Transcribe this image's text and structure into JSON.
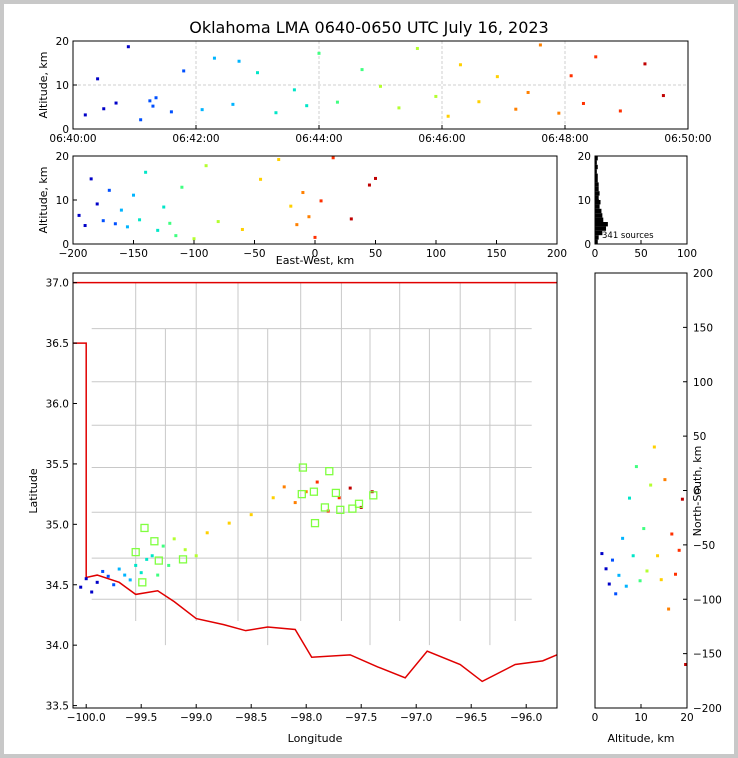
{
  "title": "Oklahoma LMA 0640-0650 UTC July 16, 2023",
  "colors": {
    "state_border": "#e00000",
    "county_lines": "#c8c8c8",
    "station_marker": "#80ff40",
    "density_bars": "#000000",
    "point_colormap": [
      "#0000c8",
      "#0050ff",
      "#00b4ff",
      "#00e6c8",
      "#40ff80",
      "#b4ff30",
      "#ffd000",
      "#ff8000",
      "#ff3000",
      "#c00000"
    ]
  },
  "chart_data": [
    {
      "id": "time_height",
      "type": "scatter",
      "ylabel": "Altitude, km",
      "xlim": [
        "06:40:00",
        "06:50:00"
      ],
      "ylim": [
        0,
        20
      ],
      "xticks": [
        "06:40:00",
        "06:42:00",
        "06:44:00",
        "06:46:00",
        "06:48:00",
        "06:50:00"
      ],
      "yticks": [
        "0",
        "10",
        "20"
      ],
      "grid": true,
      "points_t_min": [
        0.2,
        0.4,
        0.5,
        0.7,
        0.9,
        1.1,
        1.25,
        1.3,
        1.35,
        1.6,
        1.8,
        2.1,
        2.3,
        2.6,
        2.7,
        3.0,
        3.3,
        3.6,
        3.8,
        4.0,
        4.3,
        4.7,
        5.0,
        5.3,
        5.6,
        5.9,
        6.1,
        6.3,
        6.6,
        6.9,
        7.2,
        7.4,
        7.6,
        7.9,
        8.1,
        8.3,
        8.5,
        8.9,
        9.3,
        9.6
      ],
      "points_alt_km": [
        3.2,
        11.4,
        4.6,
        5.9,
        18.7,
        2.1,
        6.4,
        5.2,
        7.1,
        3.9,
        13.2,
        4.4,
        16.1,
        5.6,
        15.4,
        12.8,
        3.7,
        8.9,
        5.3,
        17.2,
        6.1,
        13.5,
        9.7,
        4.8,
        18.3,
        7.4,
        2.9,
        14.6,
        6.2,
        11.9,
        4.5,
        8.3,
        19.1,
        3.6,
        12.1,
        5.8,
        16.4,
        4.1,
        14.8,
        7.6
      ]
    },
    {
      "id": "ew_height",
      "type": "scatter",
      "xlabel": "East-West, km",
      "ylabel": "Altitude, km",
      "xlim": [
        -200,
        200
      ],
      "ylim": [
        0,
        20
      ],
      "xticks": [
        "−200",
        "−150",
        "−100",
        "−50",
        "0",
        "50",
        "100",
        "150",
        "200"
      ],
      "yticks": [
        "0",
        "10",
        "20"
      ],
      "points_x_km": [
        -195,
        -190,
        -185,
        -180,
        -175,
        -170,
        -165,
        -160,
        -155,
        -150,
        -145,
        -140,
        -130,
        -125,
        -120,
        -115,
        -110,
        -100,
        -90,
        -80,
        -60,
        -45,
        -30,
        -20,
        -15,
        -10,
        -5,
        0,
        5,
        15,
        30,
        45,
        50
      ],
      "points_alt_km": [
        6.5,
        4.2,
        14.8,
        9.1,
        5.3,
        12.2,
        4.6,
        7.7,
        3.9,
        11.1,
        5.5,
        16.3,
        3.1,
        8.4,
        4.7,
        1.9,
        12.9,
        1.2,
        17.8,
        5.1,
        3.3,
        14.7,
        19.2,
        8.6,
        4.4,
        11.7,
        6.2,
        1.5,
        9.8,
        19.6,
        5.7,
        13.4,
        14.9
      ]
    },
    {
      "id": "alt_histogram",
      "type": "bar",
      "xlim": [
        0,
        100
      ],
      "ylim": [
        0,
        20
      ],
      "xticks": [
        "0",
        "50",
        "100"
      ],
      "yticks": [
        "0",
        "10",
        "20"
      ],
      "annotation": "341 sources",
      "bin_alt_km": [
        0.5,
        1.5,
        2.5,
        3.5,
        4.5,
        5.5,
        6.5,
        7.5,
        8.5,
        9.5,
        10.5,
        11.5,
        12.5,
        13.5,
        14.5,
        15.5,
        16.5,
        17.5,
        18.5,
        19.5
      ],
      "counts": [
        3,
        4,
        8,
        12,
        14,
        9,
        8,
        7,
        5,
        6,
        4,
        5,
        4,
        4,
        3,
        3,
        2,
        3,
        2,
        3
      ]
    },
    {
      "id": "plan_view",
      "type": "scatter",
      "xlabel": "Longitude",
      "ylabel": "Latitude",
      "xlim": [
        -100.12,
        -95.72
      ],
      "ylim": [
        33.48,
        37.08
      ],
      "xticks": [
        "−100.0",
        "−99.5",
        "−99.0",
        "−98.5",
        "−98.0",
        "−97.5",
        "−97.0",
        "−96.5",
        "−96.0"
      ],
      "yticks": [
        "33.5",
        "34.0",
        "34.5",
        "35.0",
        "35.5",
        "36.0",
        "36.5",
        "37.0"
      ],
      "x_tick_values": [
        -100.0,
        -99.5,
        -99.0,
        -98.5,
        -98.0,
        -97.5,
        -97.0,
        -96.5,
        -96.0
      ],
      "y_tick_values": [
        33.5,
        34.0,
        34.5,
        35.0,
        35.5,
        36.0,
        36.5,
        37.0
      ],
      "stations_lon": [
        -99.47,
        -99.38,
        -99.34,
        -99.55,
        -99.49,
        -99.12,
        -98.04,
        -98.03,
        -97.93,
        -97.92,
        -97.83,
        -97.79,
        -97.73,
        -97.69,
        -97.58,
        -97.52,
        -97.39
      ],
      "stations_lat": [
        34.97,
        34.86,
        34.7,
        34.77,
        34.52,
        34.71,
        35.25,
        35.47,
        35.27,
        35.01,
        35.14,
        35.44,
        35.26,
        35.12,
        35.13,
        35.17,
        35.24
      ],
      "points_lon": [
        -100.05,
        -100.0,
        -99.95,
        -99.9,
        -99.85,
        -99.8,
        -99.75,
        -99.7,
        -99.65,
        -99.6,
        -99.55,
        -99.5,
        -99.45,
        -99.4,
        -99.35,
        -99.3,
        -99.25,
        -99.2,
        -99.1,
        -99.0,
        -98.9,
        -98.7,
        -98.5,
        -98.3,
        -98.2,
        -98.1,
        -98.0,
        -97.9,
        -97.8,
        -97.7,
        -97.6,
        -97.5,
        -97.4
      ],
      "points_lat": [
        34.48,
        34.55,
        34.44,
        34.52,
        34.61,
        34.57,
        34.5,
        34.63,
        34.58,
        34.54,
        34.66,
        34.6,
        34.71,
        34.74,
        34.58,
        34.82,
        34.66,
        34.88,
        34.79,
        34.74,
        34.93,
        35.01,
        35.08,
        35.22,
        35.31,
        35.18,
        35.27,
        35.35,
        35.11,
        35.22,
        35.3,
        35.14,
        35.27
      ]
    },
    {
      "id": "height_ns",
      "type": "scatter",
      "xlabel": "Altitude, km",
      "ylabel": "North-South, km",
      "xlim": [
        0,
        20
      ],
      "ylim": [
        -200,
        200
      ],
      "xticks": [
        "0",
        "10",
        "20"
      ],
      "yticks": [
        "−200",
        "−150",
        "−100",
        "−50",
        "0",
        "50",
        "100",
        "150",
        "200"
      ],
      "points_alt_km": [
        1.5,
        2.4,
        3.1,
        3.8,
        4.5,
        5.2,
        6.0,
        6.8,
        7.5,
        8.3,
        9.0,
        9.8,
        10.6,
        11.3,
        12.1,
        12.9,
        13.6,
        14.4,
        15.2,
        16.0,
        16.7,
        17.5,
        18.3,
        19.0,
        19.7
      ],
      "points_ns_km": [
        -58,
        -72,
        -86,
        -64,
        -95,
        -78,
        -44,
        -88,
        -7,
        -60,
        22,
        -83,
        -35,
        -74,
        5,
        40,
        -60,
        -82,
        10,
        -109,
        -40,
        -77,
        -55,
        -8,
        -160
      ]
    }
  ]
}
